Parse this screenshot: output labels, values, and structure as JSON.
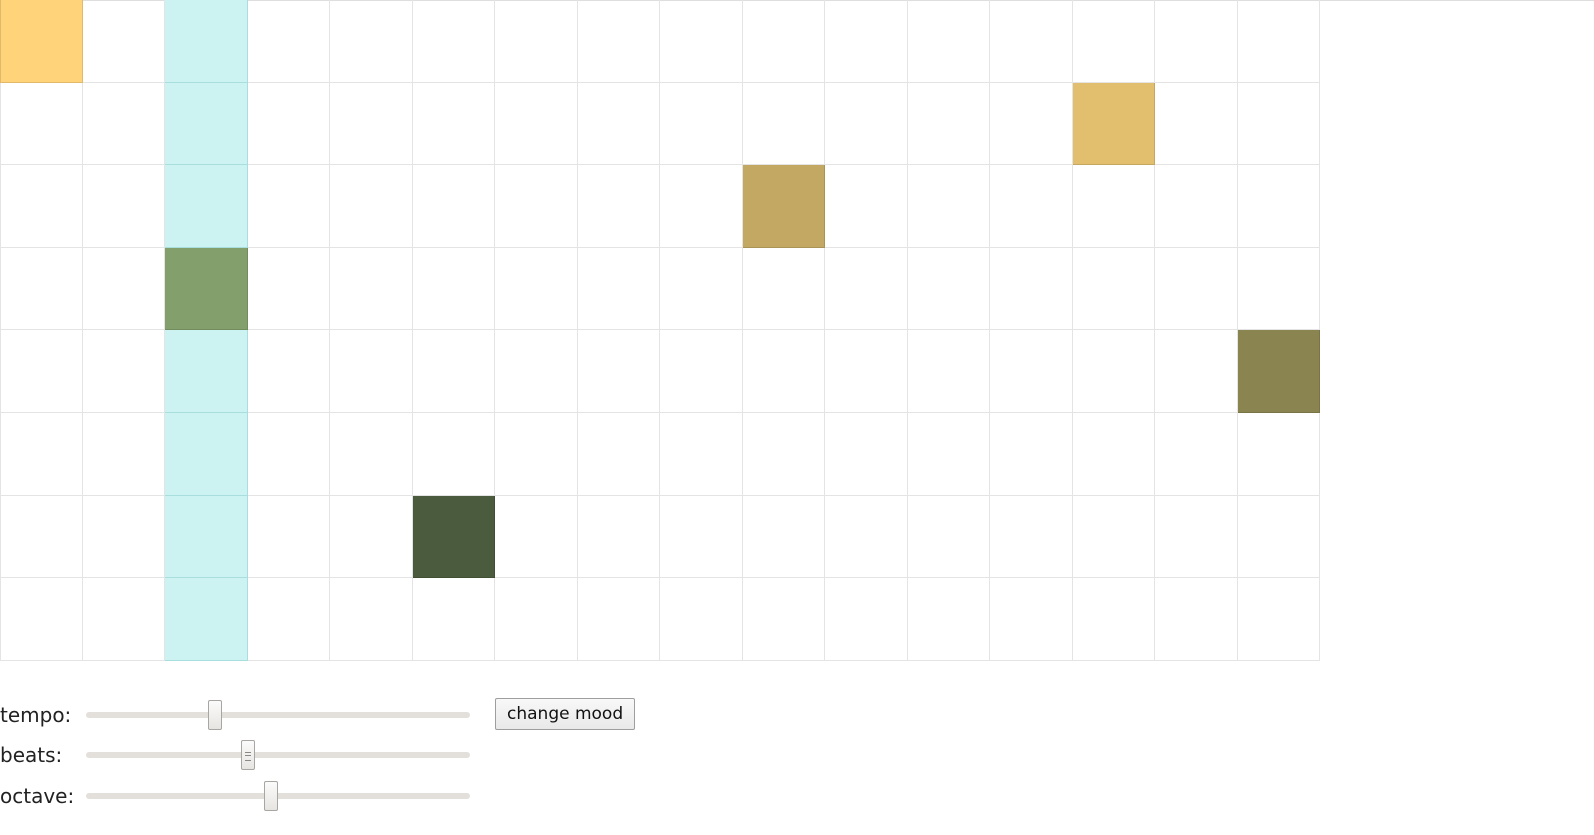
{
  "sequencer": {
    "columns": 16,
    "rows": 8,
    "playhead_column": 2,
    "playhead_color": "#ccf2f2",
    "active_notes": [
      {
        "row": 0,
        "col": 0,
        "color": "#ffd37a"
      },
      {
        "row": 1,
        "col": 13,
        "color": "#e2bf6e"
      },
      {
        "row": 2,
        "col": 9,
        "color": "#c2a862"
      },
      {
        "row": 3,
        "col": 2,
        "color": "#83a06c"
      },
      {
        "row": 4,
        "col": 15,
        "color": "#8a8450"
      },
      {
        "row": 6,
        "col": 5,
        "color": "#4b5b3d"
      }
    ]
  },
  "controls": {
    "tempo": {
      "label": "tempo:",
      "value_fraction": 0.33
    },
    "beats": {
      "label": "beats:",
      "value_fraction": 0.42
    },
    "octave": {
      "label": "octave:",
      "value_fraction": 0.48
    },
    "change_mood_label": "change mood"
  }
}
